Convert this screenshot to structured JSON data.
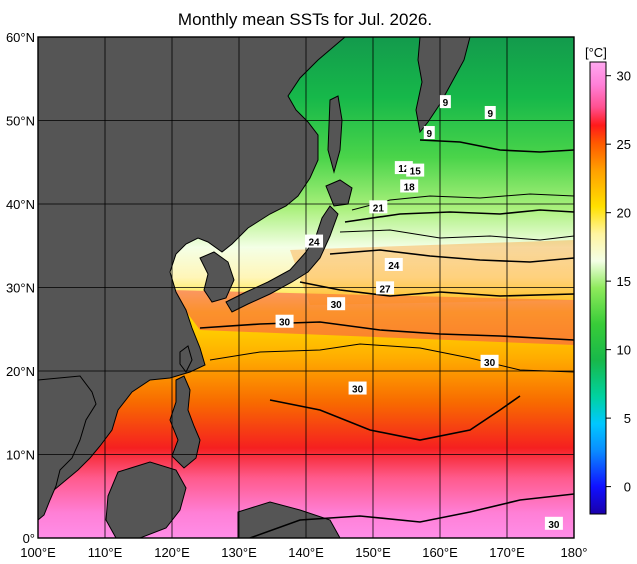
{
  "title": "Monthly mean SSTs for Jul. 2026.",
  "map": {
    "lat_labels": [
      "60°N",
      "50°N",
      "40°N",
      "30°N",
      "20°N",
      "10°N",
      "0°"
    ],
    "lon_labels": [
      "100°E",
      "110°E",
      "120°E",
      "130°E",
      "140°E",
      "150°E",
      "160°E",
      "170°E",
      "180°"
    ],
    "contour_labels": [
      {
        "text": "9",
        "lon": 160.8,
        "lat": 52.2
      },
      {
        "text": "9",
        "lon": 167.5,
        "lat": 50.9
      },
      {
        "text": "9",
        "lon": 158.4,
        "lat": 48.5
      },
      {
        "text": "12",
        "lon": 154.6,
        "lat": 44.3
      },
      {
        "text": "15",
        "lon": 156.3,
        "lat": 44.0
      },
      {
        "text": "18",
        "lon": 155.4,
        "lat": 42.1
      },
      {
        "text": "21",
        "lon": 150.8,
        "lat": 39.6
      },
      {
        "text": "24",
        "lon": 141.2,
        "lat": 35.5
      },
      {
        "text": "24",
        "lon": 153.1,
        "lat": 32.7
      },
      {
        "text": "27",
        "lon": 151.8,
        "lat": 29.9
      },
      {
        "text": "30",
        "lon": 144.5,
        "lat": 28.0
      },
      {
        "text": "30",
        "lon": 136.8,
        "lat": 25.9
      },
      {
        "text": "30",
        "lon": 167.4,
        "lat": 21.1
      },
      {
        "text": "30",
        "lon": 147.7,
        "lat": 17.9
      },
      {
        "text": "30",
        "lon": 177.0,
        "lat": 1.7
      }
    ]
  },
  "colorbar": {
    "unit": "[°C]",
    "labels": [
      "30",
      "25",
      "20",
      "15",
      "10",
      "5",
      "0"
    ],
    "range": [
      -2,
      31
    ]
  },
  "colors": {
    "land": "#555555",
    "grid": "#000000",
    "land_outline": "#000000"
  }
}
